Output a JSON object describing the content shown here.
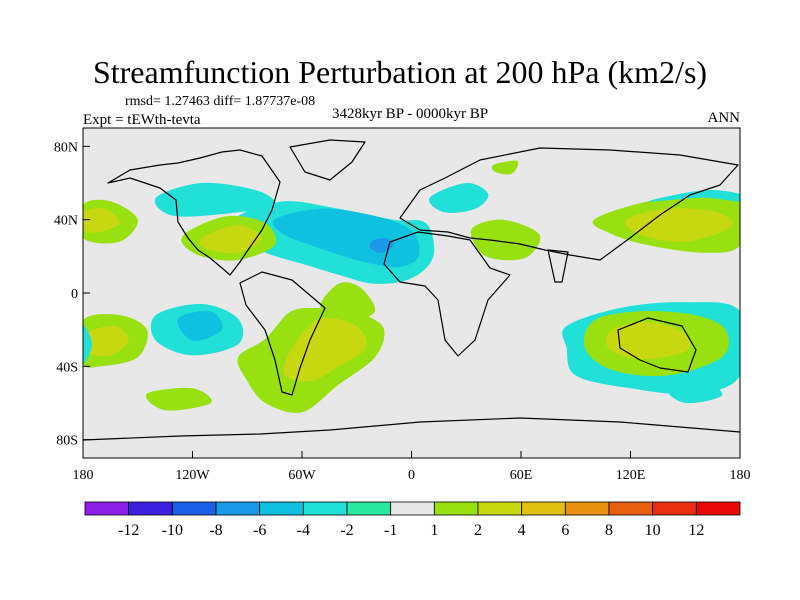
{
  "chart_data": {
    "type": "heatmap",
    "title": "Streamfunction Perturbation at 200 hPa (km2/s)",
    "stats_line": "rmsd= 1.27463 diff= 1.87737e-08",
    "experiment": "Expt = tEWth-tevta",
    "period": "3428kyr BP - 0000kyr BP",
    "season": "ANN",
    "xlim": [
      -180,
      180
    ],
    "ylim": [
      -90,
      90
    ],
    "x_ticks": [
      {
        "value": -180,
        "label": "180"
      },
      {
        "value": -120,
        "label": "120W"
      },
      {
        "value": -60,
        "label": "60W"
      },
      {
        "value": 0,
        "label": "0"
      },
      {
        "value": 60,
        "label": "60E"
      },
      {
        "value": 120,
        "label": "120E"
      },
      {
        "value": 180,
        "label": "180"
      }
    ],
    "y_ticks": [
      {
        "value": 80,
        "label": "80N"
      },
      {
        "value": 40,
        "label": "40N"
      },
      {
        "value": 0,
        "label": "0"
      },
      {
        "value": -40,
        "label": "40S"
      },
      {
        "value": -80,
        "label": "80S"
      }
    ],
    "colorbar": {
      "colors": [
        "#8c20e8",
        "#3c20e0",
        "#1c60e8",
        "#1c98e8",
        "#10c0e0",
        "#20e0d8",
        "#28e8a0",
        "#e8e8e8",
        "#98e010",
        "#c8d810",
        "#e0c010",
        "#e89010",
        "#e86010",
        "#e83010",
        "#e80808"
      ],
      "labels": [
        "-12",
        "-10",
        "-8",
        "-6",
        "-4",
        "-2",
        "-1",
        "1",
        "2",
        "4",
        "6",
        "8",
        "10",
        "12"
      ]
    },
    "regions": [
      {
        "name": "north-atlantic-negative",
        "level": -2,
        "points": [
          [
            -95,
            42
          ],
          [
            -70,
            50
          ],
          [
            -40,
            46
          ],
          [
            -10,
            40
          ],
          [
            8,
            38
          ],
          [
            12,
            20
          ],
          [
            0,
            8
          ],
          [
            -20,
            5
          ],
          [
            -40,
            10
          ],
          [
            -60,
            16
          ],
          [
            -80,
            22
          ],
          [
            -100,
            32
          ]
        ]
      },
      {
        "name": "north-atlantic-core",
        "level": -4,
        "points": [
          [
            -75,
            40
          ],
          [
            -50,
            46
          ],
          [
            -20,
            42
          ],
          [
            0,
            34
          ],
          [
            4,
            20
          ],
          [
            -8,
            14
          ],
          [
            -30,
            18
          ],
          [
            -55,
            26
          ],
          [
            -70,
            32
          ]
        ]
      },
      {
        "name": "north-atlantic-inner",
        "level": -6,
        "points": [
          [
            -22,
            28
          ],
          [
            -14,
            30
          ],
          [
            -10,
            26
          ],
          [
            -16,
            22
          ],
          [
            -22,
            24
          ]
        ]
      },
      {
        "name": "north-pacific-negative",
        "level": -2,
        "points": [
          [
            -140,
            52
          ],
          [
            -115,
            60
          ],
          [
            -85,
            56
          ],
          [
            -75,
            48
          ],
          [
            -95,
            44
          ],
          [
            -130,
            42
          ]
        ]
      },
      {
        "name": "gulf-of-mexico-positive",
        "level": 2,
        "points": [
          [
            -120,
            35
          ],
          [
            -100,
            42
          ],
          [
            -80,
            38
          ],
          [
            -75,
            26
          ],
          [
            -95,
            18
          ],
          [
            -115,
            20
          ],
          [
            -126,
            28
          ]
        ]
      },
      {
        "name": "gulf-of-mexico-core",
        "level": 4,
        "points": [
          [
            -115,
            30
          ],
          [
            -95,
            37
          ],
          [
            -82,
            30
          ],
          [
            -95,
            22
          ],
          [
            -112,
            24
          ]
        ]
      },
      {
        "name": "east-pacific-negative",
        "level": -2,
        "points": [
          [
            -140,
            -12
          ],
          [
            -115,
            -6
          ],
          [
            -95,
            -14
          ],
          [
            -95,
            -28
          ],
          [
            -120,
            -34
          ],
          [
            -140,
            -26
          ]
        ]
      },
      {
        "name": "east-pacific-core",
        "level": -4,
        "points": [
          [
            -128,
            -14
          ],
          [
            -110,
            -10
          ],
          [
            -104,
            -20
          ],
          [
            -120,
            -26
          ]
        ]
      },
      {
        "name": "south-america-positive",
        "level": 2,
        "points": [
          [
            -80,
            -25
          ],
          [
            -66,
            -10
          ],
          [
            -50,
            -8
          ],
          [
            -40,
            -6
          ],
          [
            -25,
            -12
          ],
          [
            -15,
            -20
          ],
          [
            -20,
            -35
          ],
          [
            -40,
            -50
          ],
          [
            -60,
            -65
          ],
          [
            -80,
            -60
          ],
          [
            -90,
            -48
          ],
          [
            -95,
            -35
          ]
        ]
      },
      {
        "name": "south-america-core",
        "level": 4,
        "points": [
          [
            -64,
            -28
          ],
          [
            -50,
            -14
          ],
          [
            -30,
            -18
          ],
          [
            -25,
            -30
          ],
          [
            -40,
            -40
          ],
          [
            -55,
            -48
          ],
          [
            -70,
            -44
          ]
        ]
      },
      {
        "name": "south-atlantic-tail",
        "level": 2,
        "points": [
          [
            -50,
            -8
          ],
          [
            -40,
            5
          ],
          [
            -28,
            3
          ],
          [
            -20,
            -10
          ],
          [
            -35,
            -15
          ]
        ]
      },
      {
        "name": "west-pacific-south-positive",
        "level": 2,
        "points": [
          [
            -180,
            -15
          ],
          [
            -160,
            -12
          ],
          [
            -145,
            -20
          ],
          [
            -150,
            -35
          ],
          [
            -170,
            -40
          ],
          [
            -180,
            -38
          ]
        ]
      },
      {
        "name": "west-pacific-south-core",
        "level": 4,
        "points": [
          [
            -178,
            -22
          ],
          [
            -162,
            -18
          ],
          [
            -155,
            -26
          ],
          [
            -165,
            -34
          ],
          [
            -178,
            -32
          ]
        ]
      },
      {
        "name": "southwest-pacific-negative",
        "level": -2,
        "points": [
          [
            -180,
            -18
          ],
          [
            -175,
            -28
          ],
          [
            -180,
            -38
          ]
        ]
      },
      {
        "name": "south-pacific-bottom",
        "level": 2,
        "points": [
          [
            -145,
            -55
          ],
          [
            -120,
            -52
          ],
          [
            -110,
            -60
          ],
          [
            -135,
            -64
          ]
        ]
      },
      {
        "name": "north-pacific-east-positive",
        "level": 2,
        "points": [
          [
            -180,
            48
          ],
          [
            -165,
            50
          ],
          [
            -150,
            40
          ],
          [
            -160,
            28
          ],
          [
            -180,
            30
          ]
        ]
      },
      {
        "name": "north-pacific-east-core",
        "level": 4,
        "points": [
          [
            -180,
            44
          ],
          [
            -168,
            46
          ],
          [
            -160,
            38
          ],
          [
            -172,
            33
          ],
          [
            -180,
            35
          ]
        ]
      },
      {
        "name": "north-pacific-west-positive",
        "level": 2,
        "points": [
          [
            100,
            40
          ],
          [
            130,
            50
          ],
          [
            160,
            52
          ],
          [
            180,
            50
          ],
          [
            180,
            26
          ],
          [
            160,
            22
          ],
          [
            130,
            26
          ],
          [
            110,
            32
          ]
        ]
      },
      {
        "name": "north-pacific-west-core",
        "level": 4,
        "points": [
          [
            118,
            40
          ],
          [
            140,
            46
          ],
          [
            168,
            44
          ],
          [
            175,
            36
          ],
          [
            150,
            28
          ],
          [
            125,
            32
          ]
        ]
      },
      {
        "name": "north-pacific-west-edge",
        "level": -2,
        "points": [
          [
            130,
            50
          ],
          [
            160,
            56
          ],
          [
            180,
            54
          ],
          [
            180,
            50
          ],
          [
            160,
            52
          ]
        ]
      },
      {
        "name": "europe-negative",
        "level": -2,
        "points": [
          [
            10,
            52
          ],
          [
            30,
            60
          ],
          [
            42,
            54
          ],
          [
            35,
            46
          ],
          [
            18,
            44
          ]
        ]
      },
      {
        "name": "scandinavia-blob",
        "level": 2,
        "points": [
          [
            45,
            70
          ],
          [
            58,
            72
          ],
          [
            55,
            65
          ],
          [
            46,
            66
          ]
        ]
      },
      {
        "name": "arabia-positive",
        "level": 2,
        "points": [
          [
            33,
            35
          ],
          [
            50,
            40
          ],
          [
            70,
            32
          ],
          [
            64,
            20
          ],
          [
            50,
            18
          ],
          [
            38,
            22
          ]
        ]
      },
      {
        "name": "australia-negative",
        "level": -2,
        "points": [
          [
            85,
            -18
          ],
          [
            115,
            -8
          ],
          [
            150,
            -5
          ],
          [
            180,
            -10
          ],
          [
            180,
            -45
          ],
          [
            155,
            -55
          ],
          [
            120,
            -52
          ],
          [
            90,
            -45
          ],
          [
            85,
            -30
          ]
        ]
      },
      {
        "name": "australia-positive",
        "level": 2,
        "points": [
          [
            100,
            -15
          ],
          [
            125,
            -10
          ],
          [
            155,
            -12
          ],
          [
            172,
            -20
          ],
          [
            170,
            -35
          ],
          [
            140,
            -45
          ],
          [
            110,
            -42
          ],
          [
            95,
            -30
          ]
        ]
      },
      {
        "name": "australia-core",
        "level": 4,
        "points": [
          [
            110,
            -20
          ],
          [
            130,
            -16
          ],
          [
            150,
            -22
          ],
          [
            150,
            -32
          ],
          [
            125,
            -36
          ],
          [
            108,
            -30
          ]
        ]
      },
      {
        "name": "south-indian-bottom",
        "level": -2,
        "points": [
          [
            140,
            -52
          ],
          [
            160,
            -48
          ],
          [
            170,
            -56
          ],
          [
            150,
            -60
          ]
        ]
      }
    ]
  }
}
